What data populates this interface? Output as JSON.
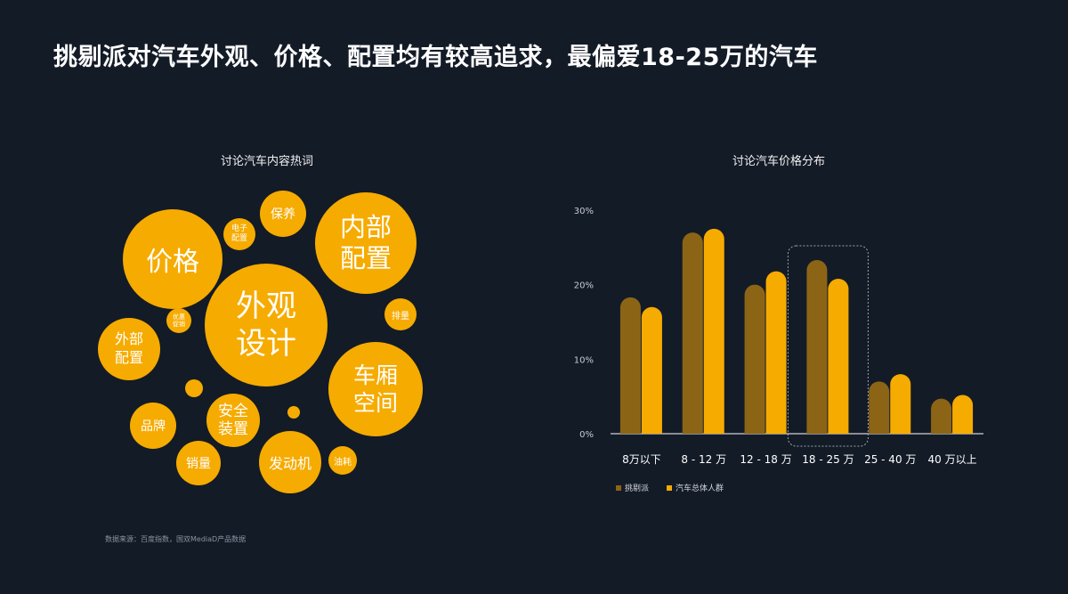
{
  "page": {
    "title": "挑剔派对汽车外观、价格、配置均有较高追求，最偏爱18-25万的汽车",
    "source": "数据来源：百度指数，国双MediaD产品数据"
  },
  "word_cloud": {
    "title": "讨论汽车内容热词",
    "words": [
      "价格",
      "电子\n配置",
      "保养",
      "内部\n配置",
      "外观\n设计",
      "优惠\n促销",
      "排量",
      "外部\n配置",
      "车厢\n空间",
      "品牌",
      "安全\n装置",
      "销量",
      "发动机",
      "油耗"
    ]
  },
  "colors": {
    "background": "#131b27",
    "picky": "#8c6415",
    "overall": "#f6ab00"
  },
  "chart_data": {
    "type": "bar",
    "title": "讨论汽车价格分布",
    "categories": [
      "8万以下",
      "8 - 12 万",
      "12 - 18 万",
      "18 - 25 万",
      "25 - 40 万",
      "40 万以上"
    ],
    "series": [
      {
        "name": "挑剔派",
        "values": [
          18.3,
          27,
          20,
          23.3,
          7,
          4.7
        ]
      },
      {
        "name": "汽车总体人群",
        "values": [
          17,
          27.5,
          21.8,
          20.8,
          8,
          5.2
        ]
      }
    ],
    "ylim": [
      0,
      30
    ],
    "yticks": [
      "0%",
      "10%",
      "20%",
      "30%"
    ],
    "highlight_category": "18 - 25 万",
    "legend_position": "bottom-left",
    "grid": false
  }
}
